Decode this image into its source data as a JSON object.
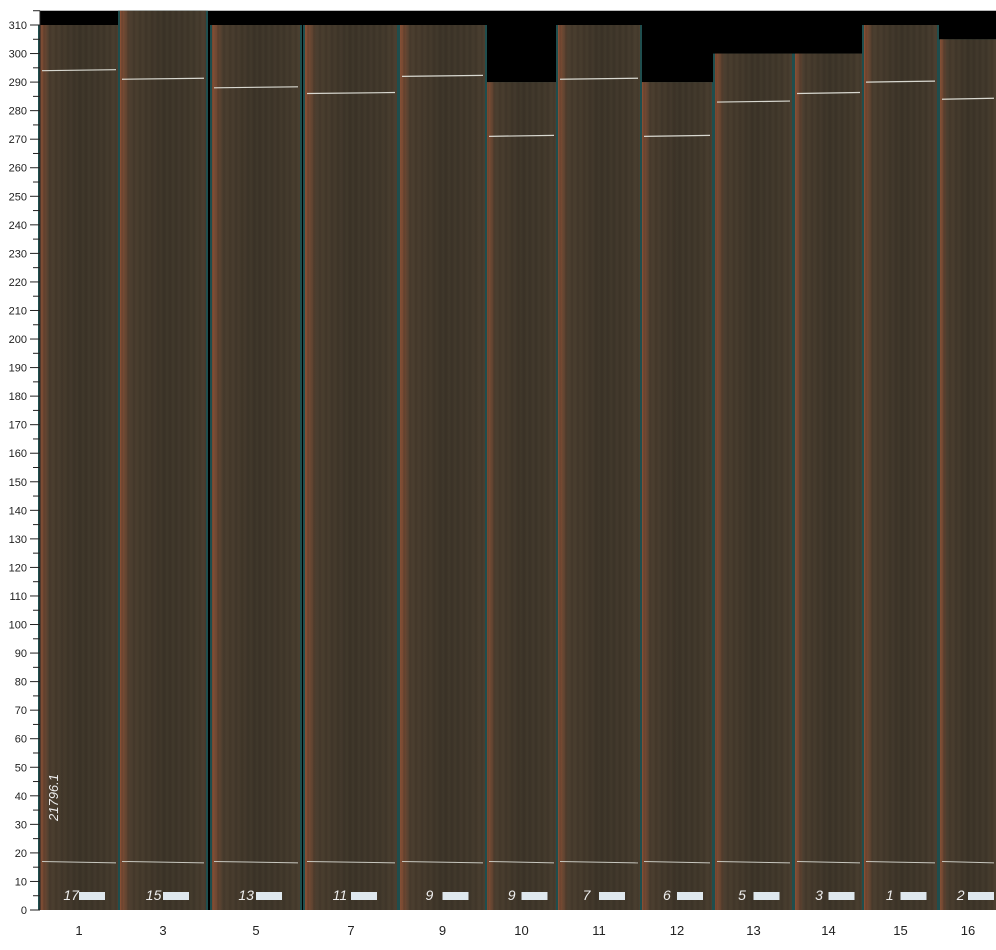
{
  "chart_data": {
    "type": "image-panel",
    "y_axis": {
      "min": 0,
      "max": 315,
      "major_step": 10,
      "minor_step": 5
    },
    "colors": {
      "wood_dark": "#3e3529",
      "wood_light": "#a0583a",
      "gap": "#1f4e4e",
      "background": "#000000"
    },
    "sheets": [
      {
        "label": "1",
        "height": 310,
        "mark": "17",
        "cut": 294
      },
      {
        "label": "3",
        "height": 315,
        "mark": "15",
        "cut": 291
      },
      {
        "label": "5",
        "height": 310,
        "mark": "13",
        "cut": 288
      },
      {
        "label": "7",
        "height": 310,
        "mark": "11",
        "cut": 286
      },
      {
        "label": "9",
        "height": 310,
        "mark": "9",
        "cut": 292
      },
      {
        "label": "10",
        "height": 290,
        "mark": "9",
        "cut": 271
      },
      {
        "label": "11",
        "height": 310,
        "mark": "7",
        "cut": 291
      },
      {
        "label": "12",
        "height": 290,
        "mark": "6",
        "cut": 271
      },
      {
        "label": "13",
        "height": 300,
        "mark": "5",
        "cut": 283
      },
      {
        "label": "14",
        "height": 300,
        "mark": "3",
        "cut": 286
      },
      {
        "label": "15",
        "height": 310,
        "mark": "1",
        "cut": 290
      },
      {
        "label": "16",
        "height": 305,
        "mark": "2",
        "cut": 284
      }
    ],
    "annotation": "21796.1"
  }
}
